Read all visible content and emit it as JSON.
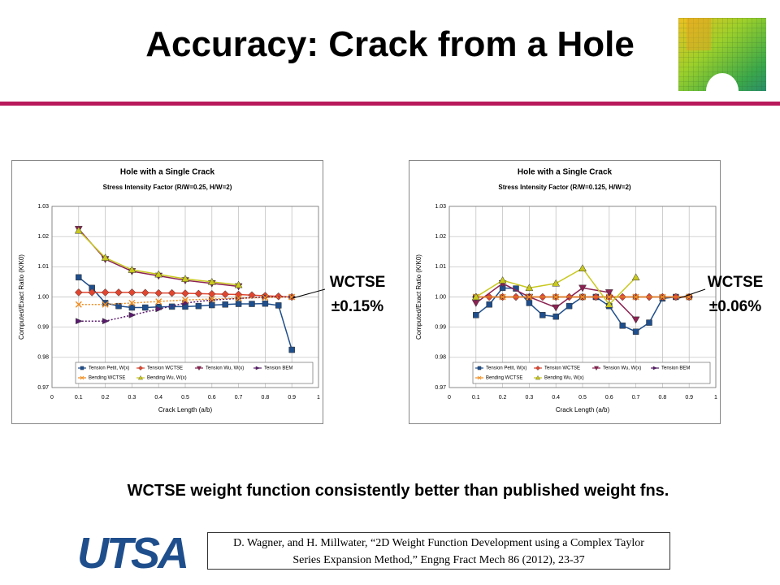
{
  "slide": {
    "title": "Accuracy: Crack from a Hole",
    "annotations": [
      {
        "label": "WCTSE",
        "value": "±0.15%"
      },
      {
        "label": "WCTSE",
        "value": "±0.06%"
      }
    ],
    "caption": "WCTSE weight function consistently better than published weight fns.",
    "logo": "UTSA",
    "citation": [
      "D. Wagner, and H. Millwater, “2D Weight Function Development using a Complex Taylor",
      "Series Expansion Method,” Engng Fract Mech 86 (2012), 23-37"
    ]
  },
  "chart_data": [
    {
      "type": "line",
      "title": "Hole with a Single Crack",
      "subtitle": "Stress Intensity Factor (R/W=0.25, H/W=2)",
      "x_label": "Crack Length (a/b)",
      "y_label": "Computed/Exact Ratio (K/K0)",
      "xlim": [
        0,
        1
      ],
      "xticks": [
        0,
        0.1,
        0.2,
        0.3,
        0.4,
        0.5,
        0.6,
        0.7,
        0.8,
        0.9,
        1
      ],
      "ylim": [
        0.97,
        1.03
      ],
      "yticks": [
        0.97,
        0.98,
        0.99,
        {
          "value": 1,
          "label": "1.00"
        },
        1.01,
        1.02,
        1.03
      ],
      "grid": true,
      "series": [
        {
          "name": "Tension Petit, W(x)",
          "color": "#1f4e8c",
          "marker": "square",
          "x": [
            0.1,
            0.15,
            0.2,
            0.25,
            0.3,
            0.35,
            0.4,
            0.45,
            0.5,
            0.55,
            0.6,
            0.65,
            0.7,
            0.75,
            0.8,
            0.85,
            0.9
          ],
          "values": [
            1.0065,
            1.003,
            0.998,
            0.997,
            0.9965,
            0.9965,
            0.9967,
            0.9968,
            0.9968,
            0.997,
            0.9973,
            0.9975,
            0.9977,
            0.9977,
            0.9978,
            0.9972,
            0.9825
          ]
        },
        {
          "name": "Tension WCTSE",
          "color": "#e0452f",
          "marker": "diamond",
          "x": [
            0.1,
            0.15,
            0.2,
            0.25,
            0.3,
            0.35,
            0.4,
            0.45,
            0.5,
            0.55,
            0.6,
            0.65,
            0.7,
            0.75,
            0.8,
            0.85,
            0.9
          ],
          "values": [
            1.0015,
            1.0015,
            1.0015,
            1.0015,
            1.0015,
            1.0014,
            1.0013,
            1.0013,
            1.0012,
            1.0011,
            1.001,
            1.0009,
            1.0008,
            1.0006,
            1.0004,
            1.0002,
            1.0
          ]
        },
        {
          "name": "Tension Wu, W(x)",
          "color": "#8b2252",
          "marker": "tri-down",
          "x": [
            0.1,
            0.2,
            0.3,
            0.4,
            0.5,
            0.6,
            0.7
          ],
          "values": [
            1.0225,
            1.0125,
            1.0085,
            1.007,
            1.0055,
            1.0045,
            1.0035
          ]
        },
        {
          "name": "Tension BEM",
          "color": "#5a1a6e",
          "marker": "tri-right",
          "dotted": true,
          "x": [
            0.1,
            0.2,
            0.3,
            0.4,
            0.5,
            0.6,
            0.7,
            0.8,
            0.9
          ],
          "values": [
            0.992,
            0.992,
            0.994,
            0.996,
            0.998,
            0.999,
            0.9995,
            1.0,
            1.0
          ]
        },
        {
          "name": "Bending WCTSE",
          "color": "#f08c1e",
          "marker": "cross",
          "dotted": true,
          "x": [
            0.1,
            0.2,
            0.3,
            0.4,
            0.5,
            0.6,
            0.7,
            0.8,
            0.9
          ],
          "values": [
            0.9975,
            0.9975,
            0.998,
            0.9985,
            0.999,
            0.9993,
            0.9996,
            0.9998,
            1.0
          ]
        },
        {
          "name": "Bending Wu, W(x)",
          "color": "#c8c81e",
          "marker": "tri-up",
          "x": [
            0.1,
            0.2,
            0.3,
            0.4,
            0.5,
            0.6,
            0.7
          ],
          "values": [
            1.022,
            1.013,
            1.009,
            1.0075,
            1.006,
            1.005,
            1.004
          ]
        }
      ]
    },
    {
      "type": "line",
      "title": "Hole with a Single Crack",
      "subtitle": "Stress Intensity Factor (R/W=0.125, H/W=2)",
      "x_label": "Crack Length (a/b)",
      "y_label": "Computed/Exact Ratio (K/K0)",
      "xlim": [
        0,
        1
      ],
      "xticks": [
        0,
        0.1,
        0.2,
        0.3,
        0.4,
        0.5,
        0.6,
        0.7,
        0.8,
        0.9,
        1
      ],
      "ylim": [
        0.97,
        1.03
      ],
      "yticks": [
        0.97,
        0.98,
        0.99,
        {
          "value": 1,
          "label": "1.00"
        },
        1.01,
        1.02,
        1.03
      ],
      "grid": true,
      "series": [
        {
          "name": "Tension Petit, W(x)",
          "color": "#1f4e8c",
          "marker": "square",
          "x": [
            0.1,
            0.15,
            0.2,
            0.25,
            0.3,
            0.35,
            0.4,
            0.45,
            0.5,
            0.55,
            0.6,
            0.65,
            0.7,
            0.75,
            0.8,
            0.85,
            0.9
          ],
          "values": [
            0.994,
            0.9975,
            1.003,
            1.0028,
            0.998,
            0.994,
            0.9935,
            0.997,
            1.0,
            1.0,
            0.997,
            0.9905,
            0.9885,
            0.9915,
            0.9995,
            1.0,
            1.0
          ]
        },
        {
          "name": "Tension WCTSE",
          "color": "#e0452f",
          "marker": "diamond",
          "x": [
            0.1,
            0.15,
            0.2,
            0.25,
            0.3,
            0.35,
            0.4,
            0.45,
            0.5,
            0.55,
            0.6,
            0.65,
            0.7,
            0.75,
            0.8,
            0.85,
            0.9
          ],
          "values": [
            1.0,
            1.0,
            1.0,
            1.0,
            1.0,
            1.0,
            1.0,
            1.0,
            1.0,
            1.0,
            1.0,
            1.0,
            1.0,
            1.0,
            1.0,
            1.0,
            1.0
          ]
        },
        {
          "name": "Tension Wu, W(x)",
          "color": "#8b2252",
          "marker": "tri-down",
          "x": [
            0.1,
            0.2,
            0.3,
            0.4,
            0.5,
            0.6,
            0.7
          ],
          "values": [
            0.998,
            1.0045,
            1.0,
            0.9965,
            1.003,
            1.0015,
            0.9925
          ]
        },
        {
          "name": "Tension BEM",
          "color": "#5a1a6e",
          "marker": "tri-right",
          "x": [
            0.1,
            0.2,
            0.3,
            0.4,
            0.5,
            0.6,
            0.7,
            0.8,
            0.9
          ],
          "values": [
            1.0,
            1.0,
            1.0,
            1.0,
            1.0,
            1.0,
            1.0,
            1.0,
            1.0
          ]
        },
        {
          "name": "Bending WCTSE",
          "color": "#f08c1e",
          "marker": "cross",
          "x": [
            0.1,
            0.2,
            0.3,
            0.4,
            0.5,
            0.6,
            0.7,
            0.8,
            0.9
          ],
          "values": [
            1.0,
            1.0,
            1.0,
            1.0,
            1.0,
            1.0,
            1.0,
            1.0,
            1.0
          ]
        },
        {
          "name": "Bending Wu, W(x)",
          "color": "#c8c81e",
          "marker": "tri-up",
          "x": [
            0.1,
            0.2,
            0.3,
            0.4,
            0.5,
            0.6,
            0.7
          ],
          "values": [
            1.0,
            1.0055,
            1.003,
            1.0045,
            1.0095,
            0.9975,
            1.0065
          ]
        }
      ]
    }
  ]
}
